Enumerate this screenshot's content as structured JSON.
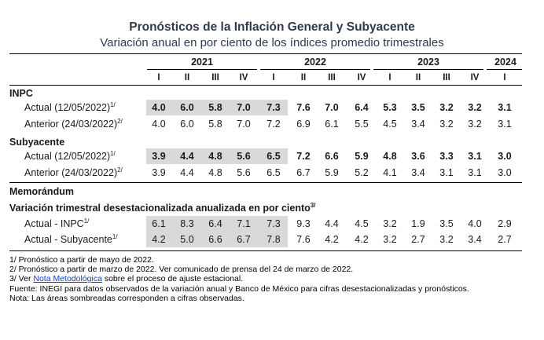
{
  "title": "Pronósticos de la Inflación General y Subyacente",
  "subtitle": "Variación anual en por ciento de los índices promedio trimestrales",
  "years": [
    "2021",
    "2022",
    "2023",
    "2024"
  ],
  "quarters": [
    "I",
    "II",
    "III",
    "IV",
    "I",
    "II",
    "III",
    "IV",
    "I",
    "II",
    "III",
    "IV",
    "I"
  ],
  "sections": {
    "inpc": "INPC",
    "subyacente": "Subyacente",
    "memorandum": "Memorándum",
    "memo_sub": "Variación trimestral desestacionalizada anualizada en por ciento",
    "memo_sub_sup": "3/"
  },
  "rows": {
    "inpc_actual": {
      "label": "Actual (12/05/2022)",
      "sup": "1/",
      "values": [
        "4.0",
        "6.0",
        "5.8",
        "7.0",
        "7.3",
        "7.6",
        "7.0",
        "6.4",
        "5.3",
        "3.5",
        "3.2",
        "3.2",
        "3.1"
      ]
    },
    "inpc_anterior": {
      "label": "Anterior (24/03/2022)",
      "sup": "2/",
      "values": [
        "4.0",
        "6.0",
        "5.8",
        "7.0",
        "7.2",
        "6.9",
        "6.1",
        "5.5",
        "4.5",
        "3.4",
        "3.2",
        "3.2",
        "3.1"
      ]
    },
    "sub_actual": {
      "label": "Actual (12/05/2022)",
      "sup": "1/",
      "values": [
        "3.9",
        "4.4",
        "4.8",
        "5.6",
        "6.5",
        "7.2",
        "6.6",
        "5.9",
        "4.8",
        "3.6",
        "3.3",
        "3.1",
        "3.0"
      ]
    },
    "sub_anterior": {
      "label": "Anterior (24/03/2022)",
      "sup": "2/",
      "values": [
        "3.9",
        "4.4",
        "4.8",
        "5.6",
        "6.5",
        "6.7",
        "5.9",
        "5.2",
        "4.1",
        "3.4",
        "3.1",
        "3.1",
        "3.0"
      ]
    },
    "memo_inpc": {
      "label": "Actual - INPC",
      "sup": "1/",
      "values": [
        "6.1",
        "8.3",
        "6.4",
        "7.1",
        "7.3",
        "9.3",
        "4.4",
        "4.5",
        "3.2",
        "1.9",
        "3.5",
        "4.0",
        "2.9"
      ]
    },
    "memo_sub": {
      "label": "Actual - Subyacente",
      "sup": "1/",
      "values": [
        "4.2",
        "5.0",
        "6.6",
        "6.7",
        "7.8",
        "7.6",
        "4.2",
        "4.2",
        "3.2",
        "2.7",
        "3.2",
        "3.4",
        "2.7"
      ]
    }
  },
  "notes": {
    "n1": "1/ Pronóstico a partir de mayo de 2022.",
    "n2": "2/ Pronóstico a partir de marzo de 2022. Ver comunicado de prensa del 24 de marzo de 2022.",
    "n3_pre": "3/ Ver ",
    "n3_link": "Nota Metodológica",
    "n3_post": " sobre el proceso de ajuste estacional.",
    "n4": "Fuente: INEGI para datos observados de la variación anual y Banco de México para cifras desestacionalizadas y pronósticos.",
    "n5": "Nota: Las áreas sombreadas corresponden a cifras observadas."
  },
  "colors": {
    "shade": "#d9d9d9",
    "title": "#2f3a4f",
    "link": "#0b3fd1"
  }
}
